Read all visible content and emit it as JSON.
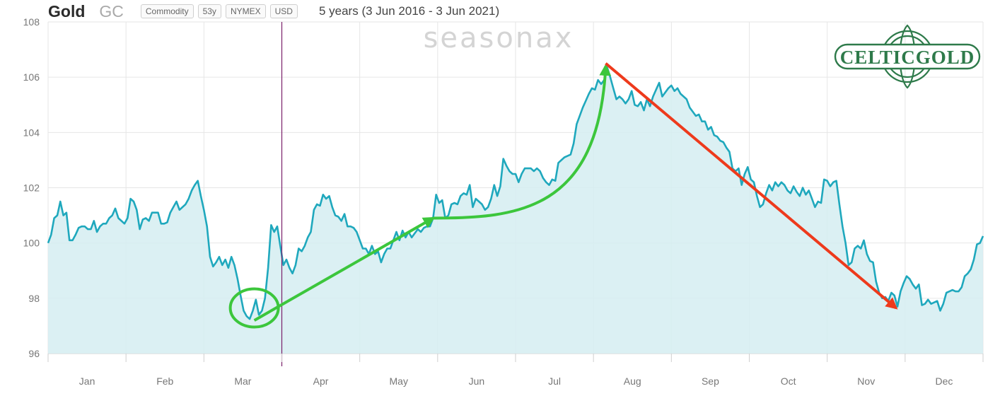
{
  "header": {
    "title": "Gold",
    "ticker": "GC",
    "badges": [
      "Commodity",
      "53y",
      "NYMEX",
      "USD"
    ],
    "period": "5 years (3 Jun 2016 - 3 Jun 2021)"
  },
  "watermark": "seasonax",
  "logo": "CELTICGOLD",
  "colors": {
    "line": "#1fa8bd",
    "area": "#d5edf1",
    "green_arrow": "#3cc63c",
    "red_arrow": "#ee3a1c",
    "today_marker": "#7a1f6a"
  },
  "chart_data": {
    "type": "line",
    "x_unit": "day_of_year",
    "ylim": [
      96,
      108
    ],
    "yticks": [
      96,
      98,
      100,
      102,
      104,
      106,
      108
    ],
    "months": [
      "Jan",
      "Feb",
      "Mar",
      "Apr",
      "May",
      "Jun",
      "Jul",
      "Aug",
      "Sep",
      "Oct",
      "Nov",
      "Dec"
    ],
    "grid": true,
    "current_day_marker": 154,
    "series": [
      {
        "points": [
          [
            1,
            100.0
          ],
          [
            3,
            100.3
          ],
          [
            5,
            100.9
          ],
          [
            7,
            101.0
          ],
          [
            9,
            101.5
          ],
          [
            11,
            101.0
          ],
          [
            13,
            101.1
          ],
          [
            15,
            100.1
          ],
          [
            17,
            100.1
          ],
          [
            19,
            100.3
          ],
          [
            21,
            100.55
          ],
          [
            23,
            100.6
          ],
          [
            25,
            100.6
          ],
          [
            27,
            100.5
          ],
          [
            29,
            100.5
          ],
          [
            31,
            100.8
          ],
          [
            33,
            100.4
          ],
          [
            35,
            100.6
          ],
          [
            37,
            100.7
          ],
          [
            39,
            100.7
          ],
          [
            41,
            100.9
          ],
          [
            43,
            101.0
          ],
          [
            45,
            101.25
          ],
          [
            47,
            100.9
          ],
          [
            49,
            100.8
          ],
          [
            51,
            100.7
          ],
          [
            53,
            100.9
          ],
          [
            55,
            101.6
          ],
          [
            57,
            101.5
          ],
          [
            59,
            101.2
          ],
          [
            61,
            100.5
          ],
          [
            63,
            100.85
          ],
          [
            65,
            100.9
          ],
          [
            67,
            100.8
          ],
          [
            69,
            101.1
          ],
          [
            71,
            101.1
          ],
          [
            73,
            101.1
          ],
          [
            75,
            100.7
          ],
          [
            77,
            100.7
          ],
          [
            79,
            100.75
          ],
          [
            81,
            101.1
          ],
          [
            83,
            101.3
          ],
          [
            85,
            101.5
          ],
          [
            87,
            101.2
          ],
          [
            89,
            101.3
          ],
          [
            91,
            101.4
          ],
          [
            93,
            101.6
          ],
          [
            95,
            101.9
          ],
          [
            97,
            102.1
          ],
          [
            99,
            102.25
          ],
          [
            101,
            101.7
          ],
          [
            103,
            101.2
          ],
          [
            105,
            100.6
          ],
          [
            107,
            99.5
          ],
          [
            109,
            99.15
          ],
          [
            111,
            99.3
          ],
          [
            113,
            99.5
          ],
          [
            115,
            99.2
          ],
          [
            117,
            99.4
          ],
          [
            119,
            99.1
          ],
          [
            121,
            99.5
          ],
          [
            123,
            99.2
          ],
          [
            125,
            98.7
          ],
          [
            127,
            98.1
          ],
          [
            129,
            97.55
          ],
          [
            131,
            97.35
          ],
          [
            133,
            97.25
          ],
          [
            135,
            97.55
          ],
          [
            137,
            97.95
          ],
          [
            139,
            97.4
          ],
          [
            141,
            97.55
          ],
          [
            143,
            98.0
          ],
          [
            145,
            99.1
          ],
          [
            147,
            100.65
          ],
          [
            149,
            100.4
          ],
          [
            151,
            100.6
          ],
          [
            153,
            99.9
          ],
          [
            155,
            99.2
          ],
          [
            157,
            99.4
          ],
          [
            159,
            99.1
          ],
          [
            161,
            98.9
          ],
          [
            163,
            99.2
          ],
          [
            165,
            99.8
          ],
          [
            167,
            99.7
          ],
          [
            169,
            99.9
          ],
          [
            171,
            100.2
          ],
          [
            173,
            100.4
          ],
          [
            175,
            101.2
          ],
          [
            177,
            101.4
          ],
          [
            179,
            101.35
          ],
          [
            181,
            101.75
          ],
          [
            183,
            101.6
          ],
          [
            185,
            101.7
          ],
          [
            187,
            101.3
          ],
          [
            189,
            101.0
          ],
          [
            191,
            100.95
          ],
          [
            193,
            100.8
          ],
          [
            195,
            101.05
          ],
          [
            197,
            100.6
          ],
          [
            199,
            100.6
          ],
          [
            201,
            100.55
          ],
          [
            203,
            100.4
          ],
          [
            205,
            100.1
          ],
          [
            207,
            99.8
          ],
          [
            209,
            99.8
          ],
          [
            211,
            99.6
          ],
          [
            213,
            99.9
          ],
          [
            215,
            99.6
          ],
          [
            217,
            99.7
          ],
          [
            219,
            99.3
          ],
          [
            221,
            99.6
          ],
          [
            223,
            99.8
          ],
          [
            225,
            99.8
          ],
          [
            227,
            100.1
          ],
          [
            229,
            100.4
          ],
          [
            231,
            100.1
          ],
          [
            233,
            100.45
          ],
          [
            235,
            100.2
          ],
          [
            237,
            100.4
          ],
          [
            239,
            100.2
          ],
          [
            241,
            100.35
          ],
          [
            243,
            100.5
          ],
          [
            245,
            100.4
          ],
          [
            247,
            100.55
          ],
          [
            249,
            100.6
          ],
          [
            251,
            100.6
          ],
          [
            253,
            100.9
          ],
          [
            255,
            101.75
          ],
          [
            257,
            101.45
          ],
          [
            259,
            101.55
          ],
          [
            261,
            100.9
          ],
          [
            263,
            101.0
          ],
          [
            265,
            101.4
          ],
          [
            267,
            101.45
          ],
          [
            269,
            101.4
          ],
          [
            271,
            101.7
          ],
          [
            273,
            101.8
          ],
          [
            275,
            101.75
          ],
          [
            277,
            102.1
          ],
          [
            279,
            101.3
          ],
          [
            281,
            101.6
          ],
          [
            283,
            101.5
          ],
          [
            285,
            101.4
          ],
          [
            287,
            101.2
          ],
          [
            289,
            101.3
          ],
          [
            291,
            101.6
          ],
          [
            293,
            102.1
          ],
          [
            295,
            101.7
          ],
          [
            297,
            102.05
          ],
          [
            299,
            103.05
          ],
          [
            301,
            102.8
          ],
          [
            303,
            102.6
          ],
          [
            305,
            102.5
          ],
          [
            307,
            102.5
          ],
          [
            309,
            102.2
          ],
          [
            311,
            102.5
          ],
          [
            313,
            102.7
          ],
          [
            315,
            102.7
          ],
          [
            317,
            102.7
          ],
          [
            319,
            102.6
          ],
          [
            321,
            102.7
          ],
          [
            323,
            102.6
          ],
          [
            325,
            102.35
          ],
          [
            327,
            102.2
          ],
          [
            329,
            102.1
          ],
          [
            331,
            102.3
          ],
          [
            333,
            102.25
          ],
          [
            335,
            102.9
          ],
          [
            337,
            103.0
          ],
          [
            339,
            103.1
          ],
          [
            341,
            103.15
          ],
          [
            343,
            103.2
          ],
          [
            345,
            103.6
          ],
          [
            347,
            104.3
          ],
          [
            349,
            104.6
          ],
          [
            351,
            104.9
          ],
          [
            353,
            105.15
          ],
          [
            355,
            105.4
          ],
          [
            357,
            105.6
          ],
          [
            359,
            105.55
          ],
          [
            361,
            105.9
          ],
          [
            363,
            105.75
          ],
          [
            365,
            105.9
          ],
          [
            367,
            106.35
          ],
          [
            369,
            106.0
          ],
          [
            371,
            105.6
          ],
          [
            373,
            105.2
          ],
          [
            375,
            105.3
          ],
          [
            377,
            105.2
          ],
          [
            379,
            105.05
          ],
          [
            381,
            105.2
          ],
          [
            383,
            105.5
          ],
          [
            385,
            105.0
          ],
          [
            387,
            104.95
          ],
          [
            389,
            105.1
          ],
          [
            391,
            104.8
          ],
          [
            393,
            105.2
          ],
          [
            395,
            104.95
          ],
          [
            397,
            105.3
          ],
          [
            399,
            105.55
          ],
          [
            401,
            105.8
          ],
          [
            403,
            105.3
          ],
          [
            405,
            105.45
          ],
          [
            407,
            105.6
          ],
          [
            409,
            105.7
          ],
          [
            411,
            105.5
          ],
          [
            413,
            105.6
          ],
          [
            415,
            105.4
          ],
          [
            417,
            105.3
          ],
          [
            419,
            105.2
          ],
          [
            421,
            104.9
          ],
          [
            423,
            104.75
          ],
          [
            425,
            104.6
          ],
          [
            427,
            104.65
          ],
          [
            429,
            104.4
          ],
          [
            431,
            104.4
          ],
          [
            433,
            104.1
          ],
          [
            435,
            104.2
          ],
          [
            437,
            103.9
          ],
          [
            439,
            103.85
          ],
          [
            441,
            103.7
          ],
          [
            443,
            103.65
          ],
          [
            445,
            103.45
          ],
          [
            447,
            103.3
          ],
          [
            449,
            102.7
          ],
          [
            451,
            102.6
          ],
          [
            453,
            102.7
          ],
          [
            455,
            102.1
          ],
          [
            457,
            102.5
          ],
          [
            459,
            102.75
          ],
          [
            461,
            102.3
          ],
          [
            463,
            102.2
          ],
          [
            465,
            101.7
          ],
          [
            467,
            101.3
          ],
          [
            469,
            101.4
          ],
          [
            471,
            101.8
          ],
          [
            473,
            102.1
          ],
          [
            475,
            101.9
          ],
          [
            477,
            102.2
          ],
          [
            479,
            102.05
          ],
          [
            481,
            102.2
          ],
          [
            483,
            102.1
          ],
          [
            485,
            101.9
          ],
          [
            487,
            101.8
          ],
          [
            489,
            102.05
          ],
          [
            491,
            101.85
          ],
          [
            493,
            101.7
          ],
          [
            495,
            102.0
          ],
          [
            497,
            101.75
          ],
          [
            499,
            101.9
          ],
          [
            501,
            101.6
          ],
          [
            503,
            101.3
          ],
          [
            505,
            101.5
          ],
          [
            507,
            101.45
          ],
          [
            509,
            102.3
          ],
          [
            511,
            102.25
          ],
          [
            513,
            102.05
          ],
          [
            515,
            102.2
          ],
          [
            517,
            102.25
          ],
          [
            519,
            101.4
          ],
          [
            521,
            100.6
          ],
          [
            523,
            100.0
          ],
          [
            525,
            99.2
          ],
          [
            527,
            99.3
          ],
          [
            529,
            99.8
          ],
          [
            531,
            99.9
          ],
          [
            533,
            99.8
          ],
          [
            535,
            100.1
          ],
          [
            537,
            99.6
          ],
          [
            539,
            99.35
          ],
          [
            541,
            99.3
          ],
          [
            543,
            98.6
          ],
          [
            545,
            98.2
          ],
          [
            547,
            98.0
          ],
          [
            549,
            98.05
          ],
          [
            551,
            97.9
          ],
          [
            553,
            98.2
          ],
          [
            555,
            98.1
          ],
          [
            557,
            97.7
          ],
          [
            559,
            98.25
          ],
          [
            561,
            98.55
          ],
          [
            563,
            98.8
          ],
          [
            565,
            98.7
          ],
          [
            567,
            98.5
          ],
          [
            569,
            98.35
          ],
          [
            571,
            98.5
          ],
          [
            573,
            97.75
          ],
          [
            575,
            97.8
          ],
          [
            577,
            97.95
          ],
          [
            579,
            97.8
          ],
          [
            581,
            97.85
          ],
          [
            583,
            97.9
          ],
          [
            585,
            97.55
          ],
          [
            587,
            97.8
          ],
          [
            589,
            98.2
          ],
          [
            591,
            98.25
          ],
          [
            593,
            98.3
          ],
          [
            595,
            98.25
          ],
          [
            597,
            98.25
          ],
          [
            599,
            98.4
          ],
          [
            601,
            98.8
          ],
          [
            603,
            98.9
          ],
          [
            605,
            99.05
          ],
          [
            607,
            99.4
          ],
          [
            609,
            99.95
          ],
          [
            611,
            100.0
          ],
          [
            613,
            100.25
          ]
        ]
      }
    ]
  },
  "annotations": {
    "circle": {
      "x": 136,
      "y": 97.65
    },
    "green_arrow_1": {
      "from": [
        136,
        97.2
      ],
      "to": [
        253,
        100.9
      ]
    },
    "green_arrow_2": {
      "from": [
        253,
        100.9
      ],
      "to": [
        366,
        106.4
      ]
    },
    "red_arrow": {
      "from": [
        366,
        106.5
      ],
      "to": [
        556,
        97.65
      ]
    }
  }
}
